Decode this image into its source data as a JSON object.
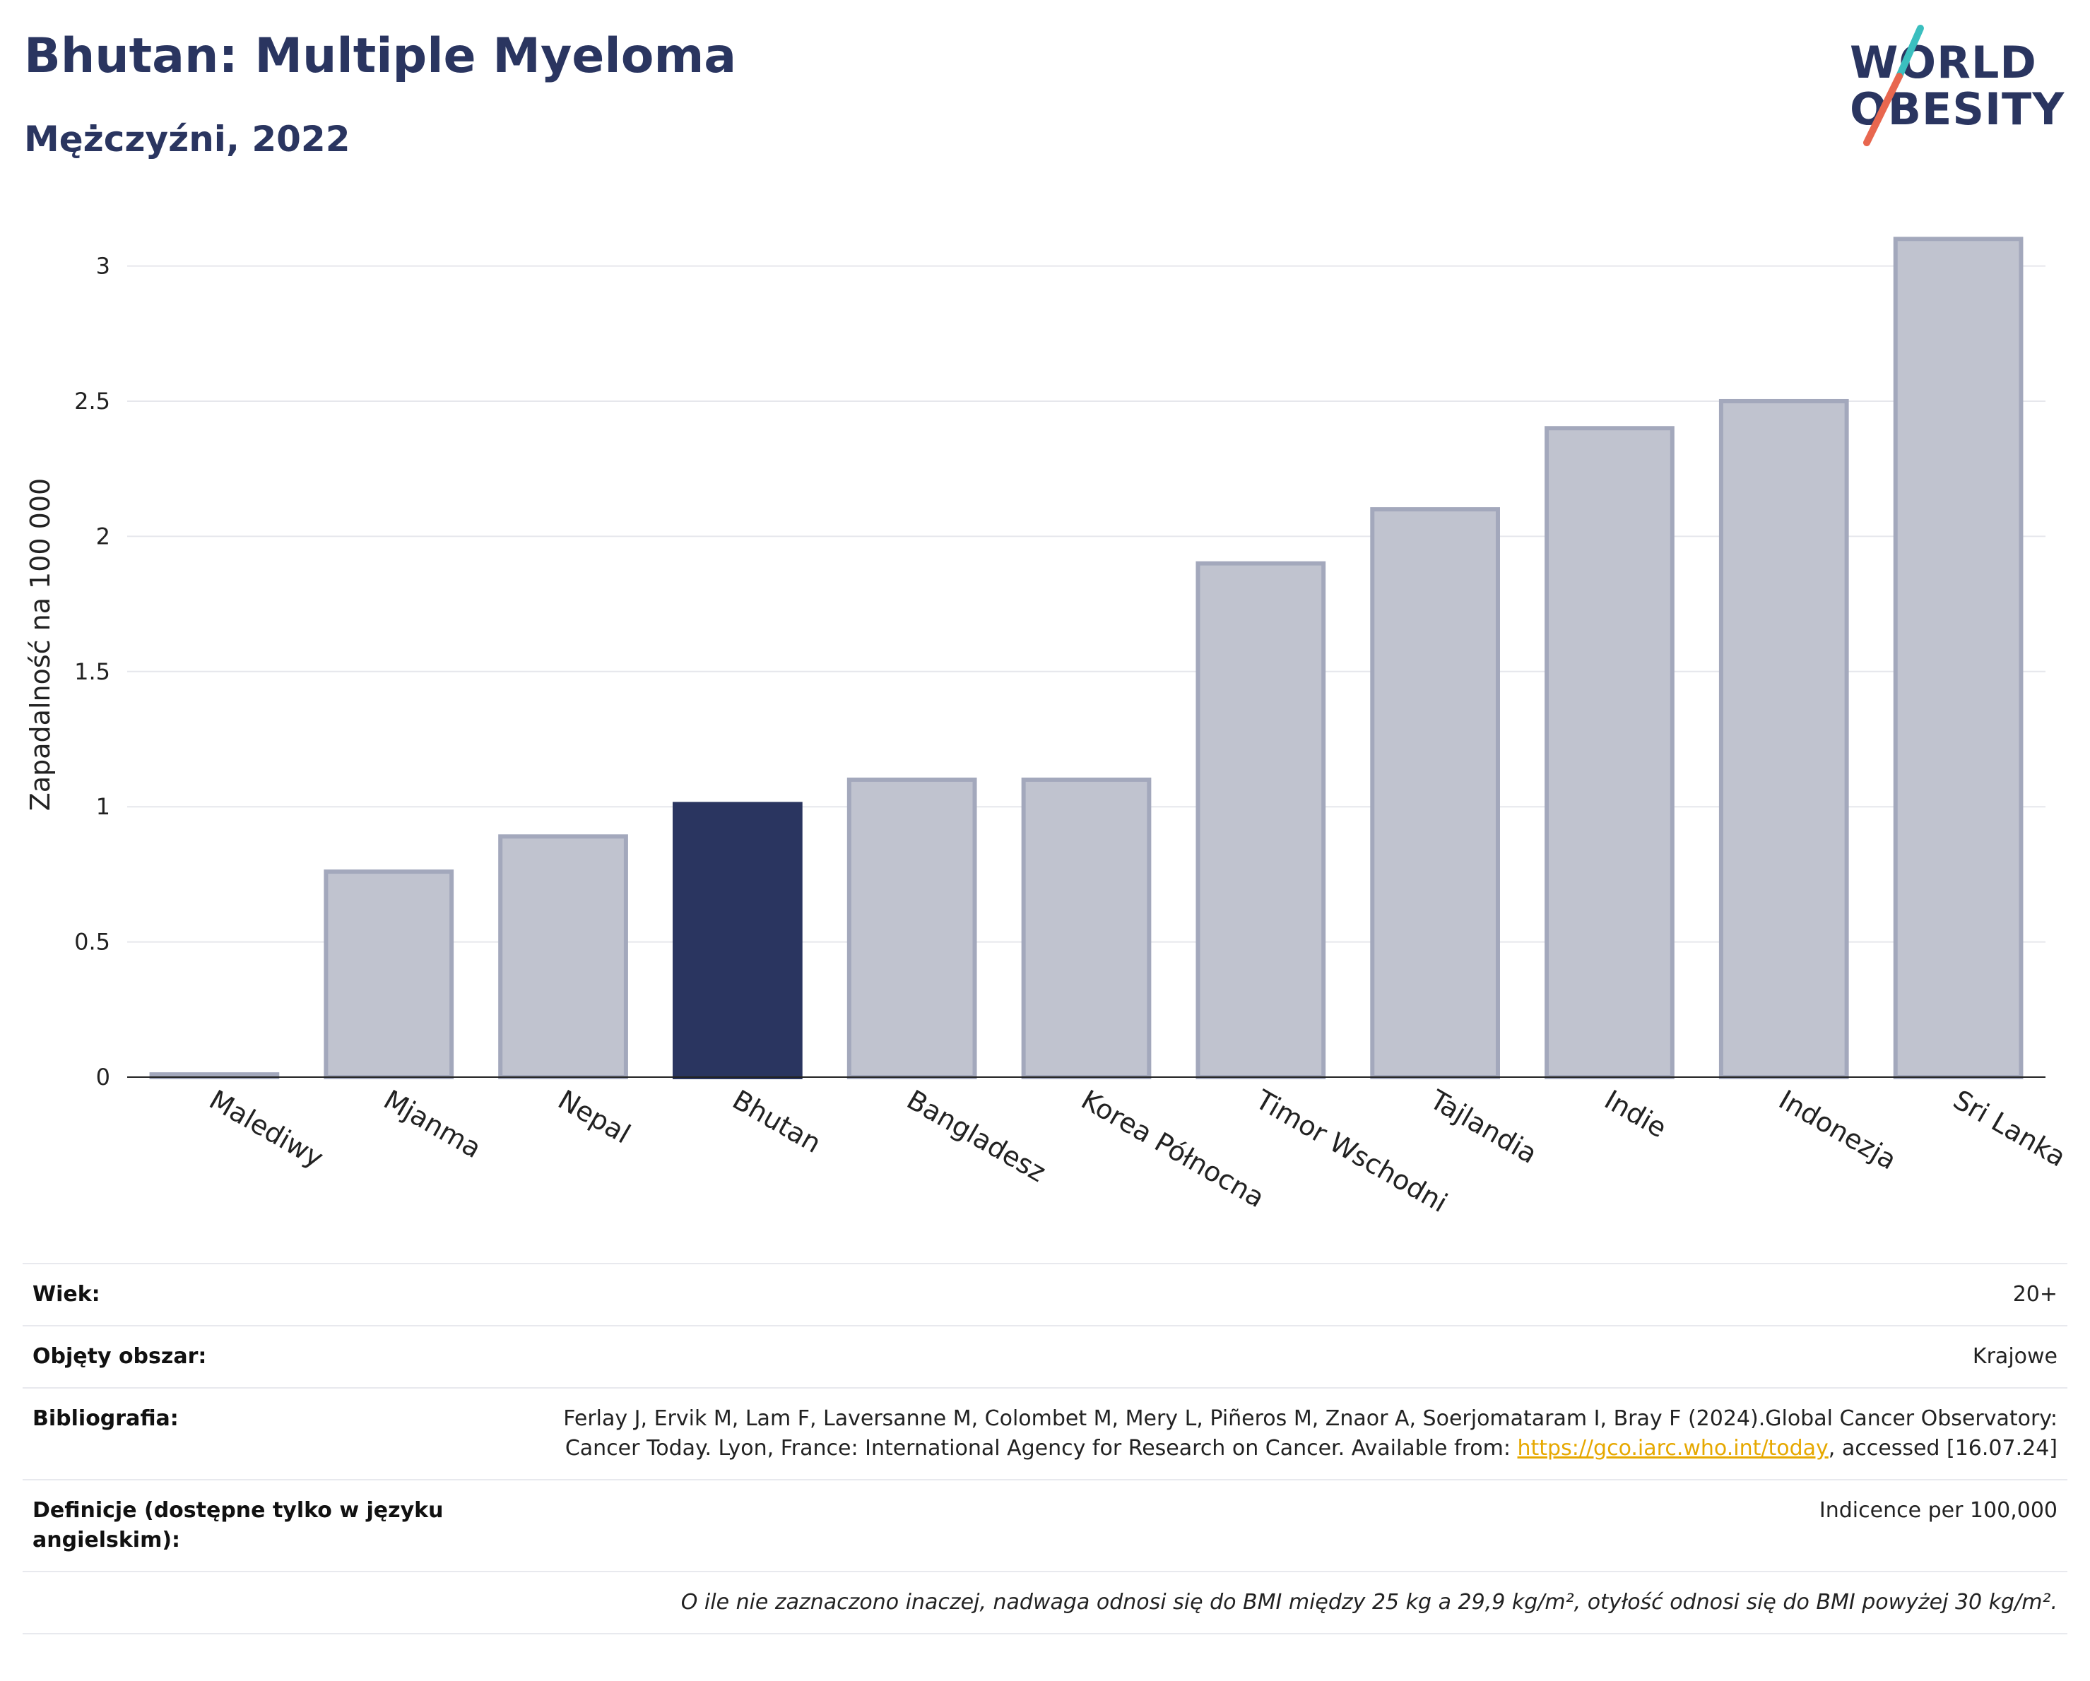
{
  "header": {
    "title": "Bhutan: Multiple Myeloma",
    "subtitle": "Mężczyźni, 2022"
  },
  "logo": {
    "line1": "WORLD",
    "line2": "OBESITY",
    "colors": {
      "text": "#2a3560",
      "slash_top": "#3bbfbf",
      "slash_bottom": "#e8674f"
    }
  },
  "chart_data": {
    "type": "bar",
    "categories": [
      "Malediwy",
      "Mjanma",
      "Nepal",
      "Bhutan",
      "Bangladesz",
      "Korea Północna",
      "Timor Wschodni",
      "Tajlandia",
      "Indie",
      "Indonezja",
      "Sri Lanka"
    ],
    "values": [
      0.01,
      0.76,
      0.89,
      1.01,
      1.1,
      1.1,
      1.9,
      2.1,
      2.4,
      2.5,
      3.1
    ],
    "highlight": "Bhutan",
    "ylabel": "Zapadalność na 100 000",
    "ylim": [
      0,
      3.2
    ],
    "yticks": [
      0,
      0.5,
      1,
      1.5,
      2,
      2.5,
      3
    ],
    "ytick_labels": [
      "0",
      "0.5",
      "1",
      "1.5",
      "2",
      "2.5",
      "3"
    ],
    "grid": true,
    "colors": {
      "bar": "#c0c3cf",
      "bar_edge": "#a3a8bc",
      "highlight": "#2a3560",
      "grid": "#e6e7ec",
      "axis": "#222222"
    }
  },
  "info": {
    "rows": [
      {
        "label": "Wiek:",
        "value": "20+"
      },
      {
        "label": "Objęty obszar:",
        "value": "Krajowe"
      },
      {
        "label": "Bibliografia:",
        "value_pre": "Ferlay J, Ervik M, Lam F, Laversanne M, Colombet M, Mery L, Piñeros M, Znaor A, Soerjomataram I, Bray F (2024).Global Cancer Observatory: Cancer Today. Lyon, France: International Agency for Research on Cancer. Available from: ",
        "link": "https://gco.iarc.who.int/today",
        "value_post": ", accessed [16.07.24]"
      },
      {
        "label": "Definicje (dostępne tylko w języku angielskim):",
        "value": "Indicence per 100,000"
      }
    ],
    "footnote": "O ile nie zaznaczono inaczej, nadwaga odnosi się do BMI między 25 kg a 29,9 kg/m², otyłość odnosi się do BMI powyżej 30 kg/m²."
  }
}
